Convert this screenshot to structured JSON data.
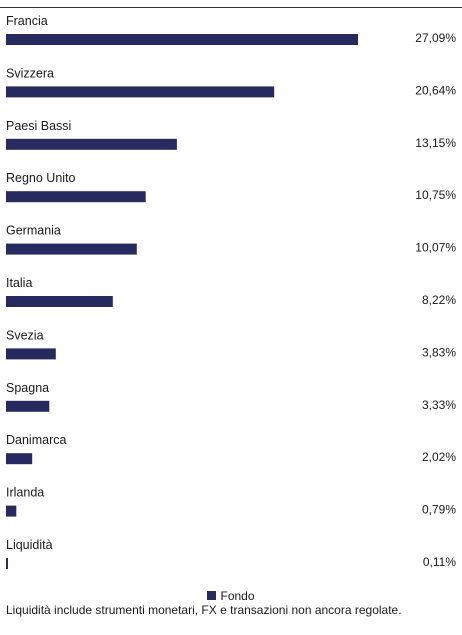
{
  "chart_data": {
    "type": "bar",
    "orientation": "horizontal",
    "categories": [
      "Francia",
      "Svizzera",
      "Paesi Bassi",
      "Regno Unito",
      "Germania",
      "Italia",
      "Svezia",
      "Spagna",
      "Danimarca",
      "Irlanda",
      "Liquidità"
    ],
    "series": [
      {
        "name": "Fondo",
        "values": [
          27.09,
          20.64,
          13.15,
          10.75,
          10.07,
          8.22,
          3.83,
          3.33,
          2.02,
          0.79,
          0.11
        ],
        "labels": [
          "27,09%",
          "20,64%",
          "13,15%",
          "10,75%",
          "10,07%",
          "8,22%",
          "3,83%",
          "3,33%",
          "2,02%",
          "0,79%",
          "0,11%"
        ]
      }
    ],
    "xlim": [
      0,
      27.09
    ],
    "grid": false,
    "legend_position": "bottom-center"
  },
  "colors": {
    "bar": "#272a5f",
    "text": "#1a1a1a"
  },
  "legend": {
    "label": "Fondo"
  },
  "footnote": "Liquidità include strumenti monetari, FX e transazioni non ancora regolate."
}
